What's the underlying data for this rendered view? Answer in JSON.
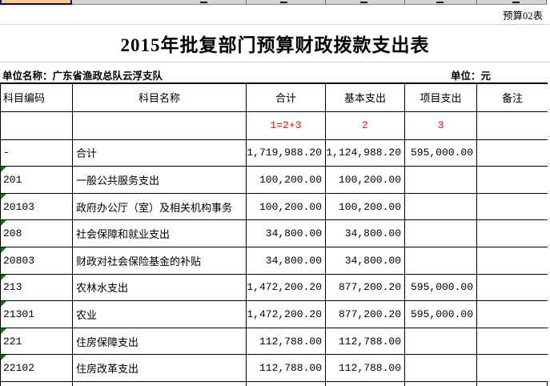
{
  "colors": {
    "accent_orange": "#FFCC99",
    "strip_gray": "#D6D3CE",
    "selection_blue": "#000080",
    "formula_red": "#FF0000",
    "flag_green": "#008000"
  },
  "header": {
    "sheet_label": "预算02表",
    "title": "2015年批复部门预算财政拨款支出表",
    "unit_name": "单位名称：广东省渔政总队云浮支队",
    "unit": "单位：元"
  },
  "table": {
    "columns": [
      "科目编码",
      "科目名称",
      "合计",
      "基本支出",
      "项目支出",
      "备注"
    ],
    "formula_row": {
      "total": "1=2+3",
      "basic": "2",
      "project": "3"
    },
    "rows": [
      {
        "code": "-",
        "name": "合计",
        "total": "1,719,988.20",
        "basic": "1,124,988.20",
        "project": "595,000.00",
        "note": "",
        "flag": false
      },
      {
        "code": "201",
        "name": "一般公共服务支出",
        "total": "100,200.00",
        "basic": "100,200.00",
        "project": "",
        "note": "",
        "flag": true
      },
      {
        "code": "20103",
        "name": "政府办公厅（室）及相关机构事务",
        "total": "100,200.00",
        "basic": "100,200.00",
        "project": "",
        "note": "",
        "flag": true
      },
      {
        "code": "208",
        "name": "社会保障和就业支出",
        "total": "34,800.00",
        "basic": "34,800.00",
        "project": "",
        "note": "",
        "flag": true
      },
      {
        "code": "20803",
        "name": "财政对社会保险基金的补贴",
        "total": "34,800.00",
        "basic": "34,800.00",
        "project": "",
        "note": "",
        "flag": true
      },
      {
        "code": "213",
        "name": "农林水支出",
        "total": "1,472,200.20",
        "basic": "877,200.20",
        "project": "595,000.00",
        "note": "",
        "flag": true
      },
      {
        "code": "21301",
        "name": "农业",
        "total": "1,472,200.20",
        "basic": "877,200.20",
        "project": "595,000.00",
        "note": "",
        "flag": true
      },
      {
        "code": "221",
        "name": "住房保障支出",
        "total": "112,788.00",
        "basic": "112,788.00",
        "project": "",
        "note": "",
        "flag": true
      },
      {
        "code": "22102",
        "name": "住房改革支出",
        "total": "112,788.00",
        "basic": "112,788.00",
        "project": "",
        "note": "",
        "flag": true
      }
    ]
  }
}
